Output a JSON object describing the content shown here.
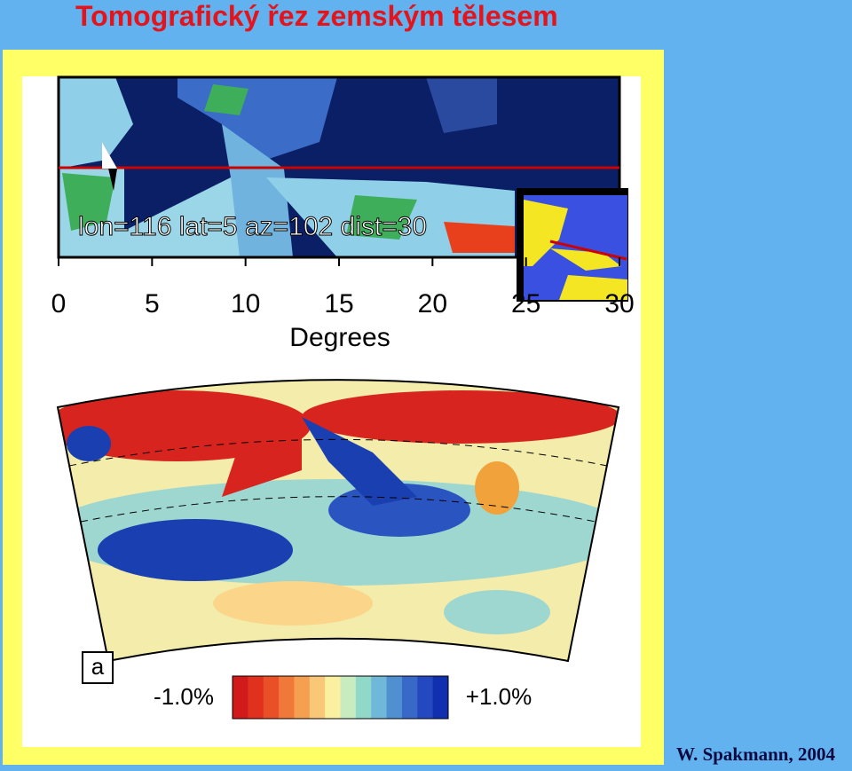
{
  "title": "Tomografický řez zemským tělesem",
  "figure": {
    "map_label": "lon=116 lat=5 az=102 dist=30",
    "axis": {
      "ticks": [
        0,
        5,
        10,
        15,
        20,
        25,
        30
      ],
      "label": "Degrees"
    },
    "panel_label": "a",
    "colorbar": {
      "min_label": "-1.0%",
      "max_label": "+1.0%"
    }
  },
  "credit": "W. Spakmann, 2004"
}
